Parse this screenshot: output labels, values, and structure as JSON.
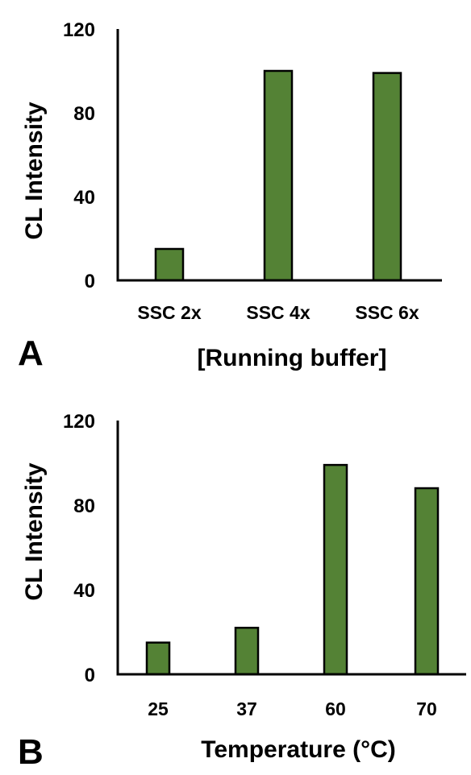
{
  "chart_data": [
    {
      "type": "bar",
      "panel_label": "A",
      "categories": [
        "SSC 2x",
        "SSC 4x",
        "SSC 6x"
      ],
      "values": [
        15,
        100,
        99
      ],
      "xlabel": "[Running buffer]",
      "ylabel": "CL Intensity",
      "ylim": [
        0,
        120
      ],
      "yticks": [
        0,
        40,
        80,
        120
      ],
      "grid": false,
      "bar_color": "#548235"
    },
    {
      "type": "bar",
      "panel_label": "B",
      "categories": [
        "25",
        "37",
        "60",
        "70"
      ],
      "values": [
        15,
        22,
        99,
        88
      ],
      "xlabel": "Temperature (°C)",
      "ylabel": "CL Intensity",
      "ylim": [
        0,
        120
      ],
      "yticks": [
        0,
        40,
        80,
        120
      ],
      "grid": false,
      "bar_color": "#548235"
    }
  ]
}
